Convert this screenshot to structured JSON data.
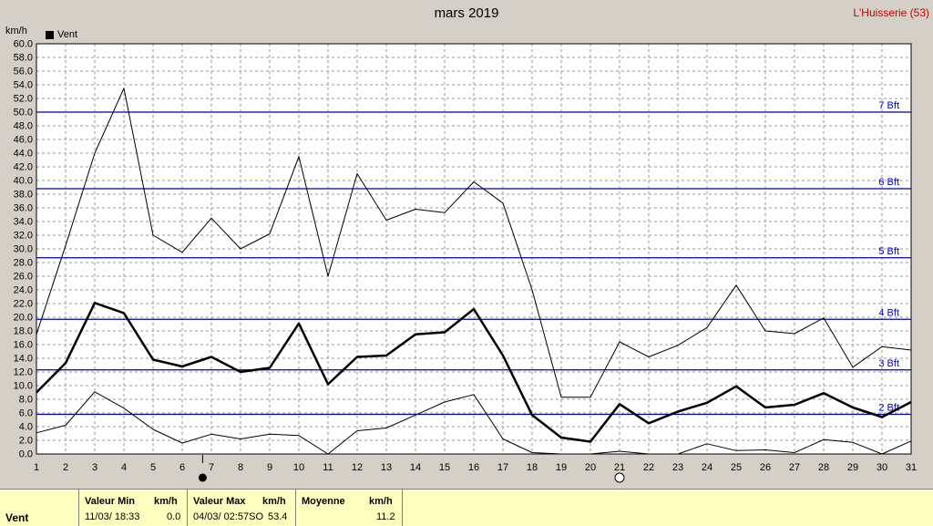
{
  "header": {
    "title": "mars 2019",
    "station": "L'Huisserie (53)",
    "unit": "km/h",
    "legend_label": "Vent"
  },
  "chart_data": {
    "type": "line",
    "title": "mars 2019",
    "ylabel": "km/h",
    "xlabel": "",
    "ylim": [
      0,
      60
    ],
    "y_ticks": [
      "0.0",
      "2.0",
      "4.0",
      "6.0",
      "8.0",
      "10.0",
      "12.0",
      "14.0",
      "16.0",
      "18.0",
      "20.0",
      "22.0",
      "24.0",
      "26.0",
      "28.0",
      "30.0",
      "32.0",
      "34.0",
      "36.0",
      "38.0",
      "40.0",
      "42.0",
      "44.0",
      "46.0",
      "48.0",
      "50.0",
      "52.0",
      "54.0",
      "56.0",
      "58.0",
      "60.0"
    ],
    "x": [
      1,
      2,
      3,
      4,
      5,
      6,
      7,
      8,
      9,
      10,
      11,
      12,
      13,
      14,
      15,
      16,
      17,
      18,
      19,
      20,
      21,
      22,
      23,
      24,
      25,
      26,
      27,
      28,
      29,
      30,
      31
    ],
    "grid": true,
    "legend": "top-left",
    "series": [
      {
        "name": "Vent",
        "values": [
          17.5,
          30.5,
          44.0,
          53.5,
          32.0,
          29.5,
          34.5,
          30.0,
          32.2,
          43.5,
          26.0,
          41.0,
          34.2,
          35.8,
          35.3,
          39.8,
          36.7,
          24.0,
          8.3,
          8.3,
          16.4,
          14.2,
          15.9,
          18.5,
          24.7,
          18.0,
          17.6,
          19.9,
          12.7,
          15.7,
          15.2
        ],
        "style": "max"
      },
      {
        "name": "Vent",
        "values": [
          9.0,
          13.3,
          22.1,
          20.6,
          13.8,
          12.8,
          14.2,
          12.0,
          12.6,
          19.1,
          10.2,
          14.2,
          14.4,
          17.5,
          17.8,
          21.2,
          14.4,
          5.7,
          2.4,
          1.8,
          7.3,
          4.5,
          6.2,
          7.5,
          9.9,
          6.8,
          7.2,
          8.9,
          6.8,
          5.4,
          7.6
        ],
        "style": "mean"
      },
      {
        "name": "Vent",
        "values": [
          3.1,
          4.2,
          9.1,
          6.7,
          3.6,
          1.6,
          2.9,
          2.2,
          2.9,
          2.7,
          0.0,
          3.4,
          3.8,
          5.7,
          7.6,
          8.7,
          2.2,
          0.2,
          0.0,
          0.0,
          0.4,
          0.0,
          0.0,
          1.5,
          0.5,
          0.6,
          0.2,
          2.1,
          1.7,
          0.0,
          1.9
        ],
        "style": "min"
      }
    ],
    "beaufort": [
      {
        "label": "2 Bft",
        "value": 5.8
      },
      {
        "label": "3 Bft",
        "value": 12.3
      },
      {
        "label": "4 Bft",
        "value": 19.7
      },
      {
        "label": "5 Bft",
        "value": 28.7
      },
      {
        "label": "6 Bft",
        "value": 38.8
      },
      {
        "label": "7 Bft",
        "value": 50.0
      }
    ],
    "moon_phases": [
      {
        "day": 6.7,
        "phase": "new"
      },
      {
        "day": 21,
        "phase": "full"
      }
    ]
  },
  "stats": {
    "row_label": "Vent",
    "min_header": "Valeur Min",
    "min_unit": "km/h",
    "min_when": "11/03/  18:33",
    "min_value": "0.0",
    "max_header": "Valeur Max",
    "max_unit": "km/h",
    "max_when": "04/03/  02:57SO",
    "max_value": "53.4",
    "mean_header": "Moyenne",
    "mean_unit": "km/h",
    "mean_value": "11.2"
  },
  "colors": {
    "plot_bg": "#ffffff",
    "beaufort_line": "#0000a0",
    "beaufort_label": "#0000cc",
    "series": "#000000"
  }
}
